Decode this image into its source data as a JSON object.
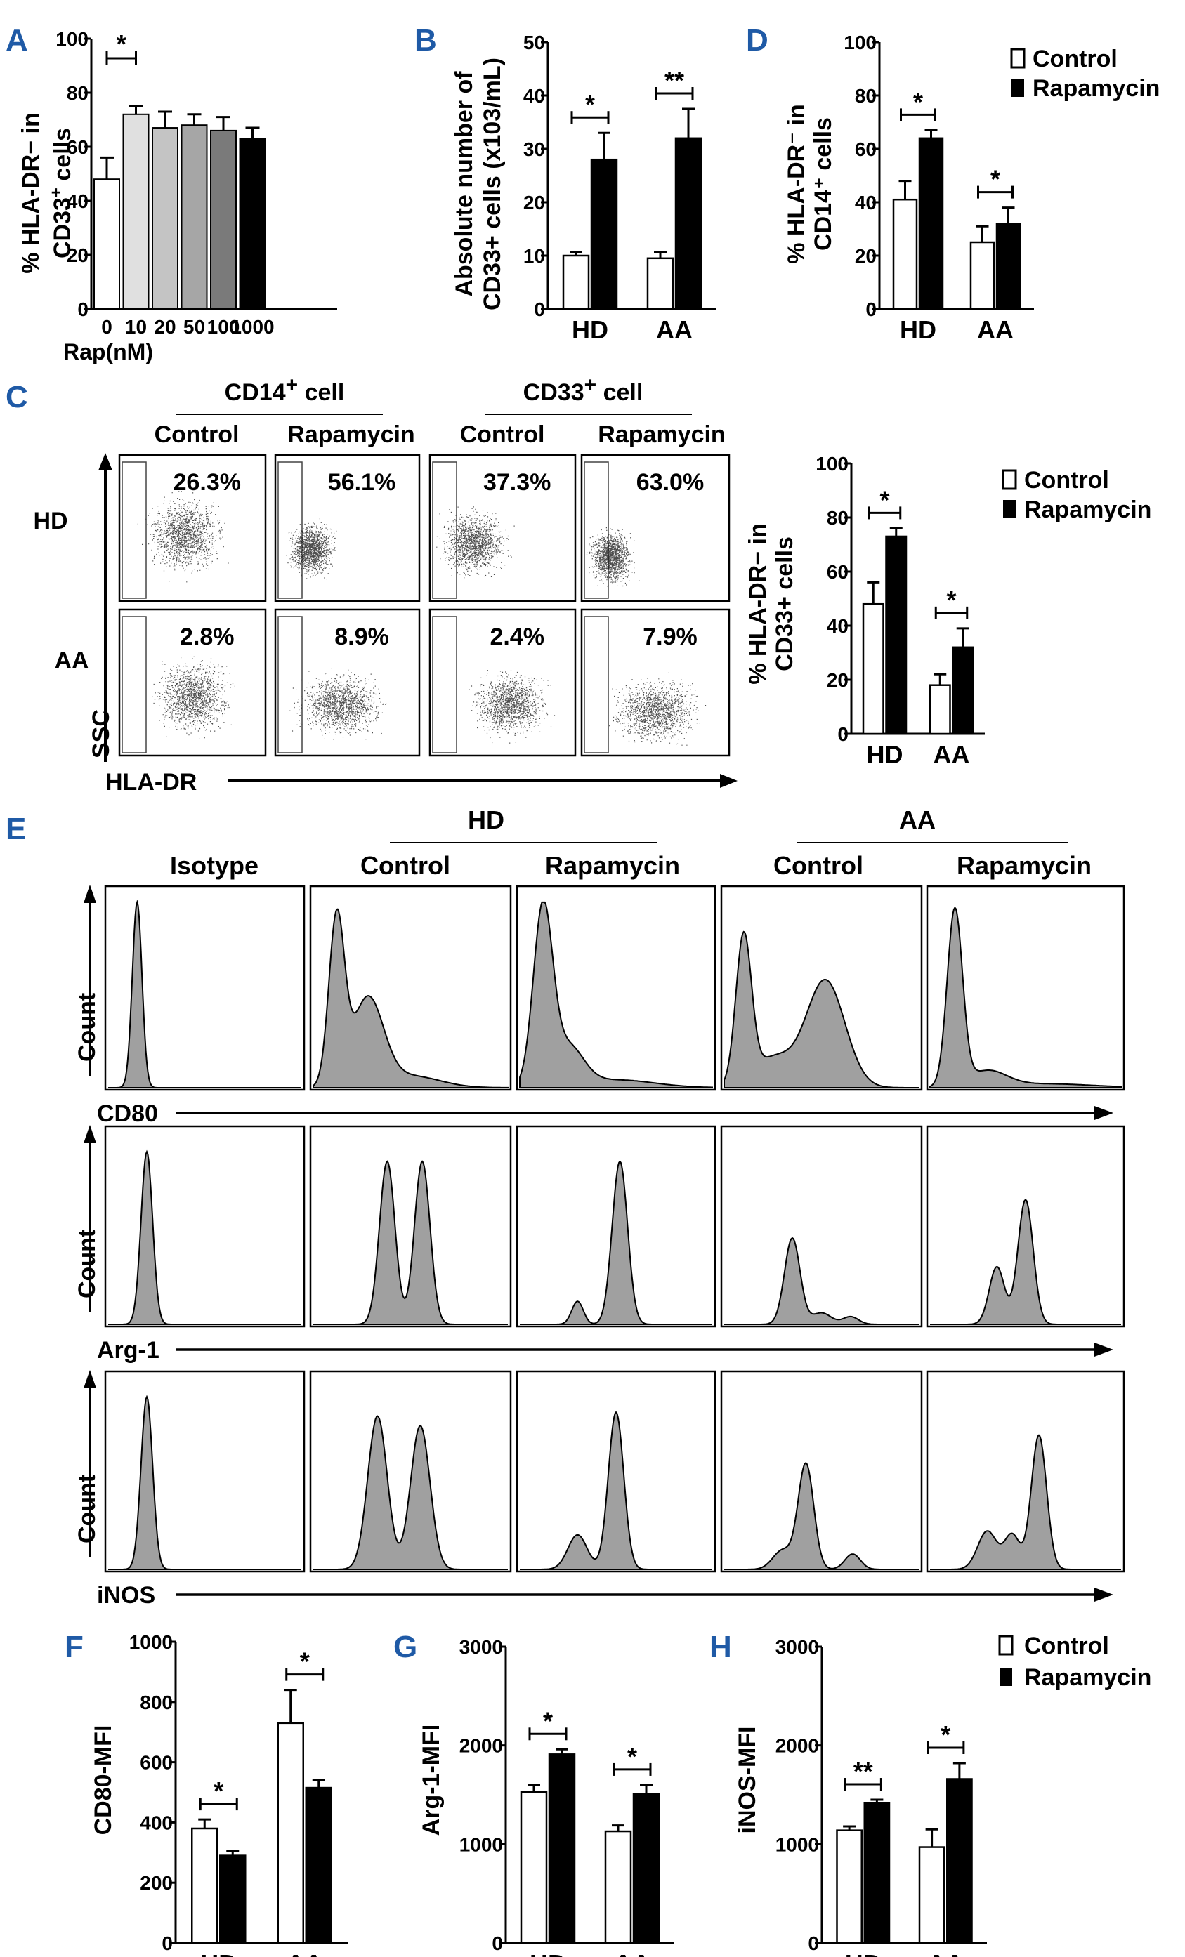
{
  "colors": {
    "panel_letter": "#1f5aa6",
    "bar_control": "#ffffff",
    "bar_rap": "#000000",
    "hist_fill": "#a0a0a0",
    "ink": "#000000"
  },
  "legend": {
    "control": "Control",
    "rapamycin": "Rapamycin"
  },
  "panels": {
    "A": {
      "letter": "A"
    },
    "B": {
      "letter": "B"
    },
    "C": {
      "letter": "C"
    },
    "D": {
      "letter": "D"
    },
    "E": {
      "letter": "E"
    },
    "F": {
      "letter": "F"
    },
    "G": {
      "letter": "G"
    },
    "H": {
      "letter": "H"
    }
  },
  "panelC": {
    "group1": "CD14",
    "group1_sup": "+",
    "group1_suffix": " cell",
    "group2": "CD33",
    "group2_sup": "+",
    "group2_suffix": " cell",
    "col_labels": [
      "Control",
      "Rapamycin",
      "Control",
      "Rapamycin"
    ],
    "row_labels": [
      "HD",
      "AA"
    ],
    "y_axis": "SSC",
    "x_axis": "HLA-DR",
    "percentages": [
      [
        "26.3%",
        "56.1%",
        "37.3%",
        "63.0%"
      ],
      [
        "2.8%",
        "8.9%",
        "2.4%",
        "7.9%"
      ]
    ]
  },
  "panelE": {
    "hd_group": "HD",
    "aa_group": "AA",
    "col_labels": [
      "Isotype",
      "Control",
      "Rapamycin",
      "Control",
      "Rapamycin"
    ],
    "y_axis": "Count",
    "rows": [
      {
        "marker": "CD80"
      },
      {
        "marker": "Arg-1"
      },
      {
        "marker": "iNOS"
      }
    ]
  },
  "chart_data": [
    {
      "id": "A",
      "type": "bar",
      "ylabel_line1": "% HLA-DR− in",
      "ylabel_line2": "CD33",
      "ylabel_sup": "+",
      "ylabel_suffix": " cells",
      "xlabel": "Rap(nM)",
      "categories": [
        "0",
        "10",
        "20",
        "50",
        "100",
        "1000"
      ],
      "values": [
        48,
        72,
        67,
        68,
        66,
        63
      ],
      "errors": [
        8,
        3,
        6,
        4,
        5,
        4
      ],
      "fills": [
        "#ffffff",
        "#e0e0e0",
        "#c4c4c4",
        "#a6a6a6",
        "#7a7a7a",
        "#000000"
      ],
      "ylim": [
        0,
        100
      ],
      "yticks": [
        0,
        20,
        40,
        60,
        80,
        100
      ],
      "significance": [
        {
          "from": 0,
          "to": 1,
          "label": "*"
        }
      ]
    },
    {
      "id": "B",
      "type": "bar",
      "ylabel_line1": "Absolute number of",
      "ylabel_line2": "CD33+ cells (x103/mL)",
      "categories": [
        "HD",
        "AA"
      ],
      "series": [
        {
          "name": "Control",
          "values": [
            10,
            9.5
          ],
          "errors": [
            0.7,
            1.2
          ]
        },
        {
          "name": "Rapamycin",
          "values": [
            28,
            32
          ],
          "errors": [
            5,
            5.5
          ]
        }
      ],
      "ylim": [
        0,
        50
      ],
      "yticks": [
        0,
        10,
        20,
        30,
        40,
        50
      ],
      "significance": [
        {
          "group": 0,
          "label": "*"
        },
        {
          "group": 1,
          "label": "**"
        }
      ]
    },
    {
      "id": "D",
      "type": "bar",
      "ylabel_line1": "% HLA-DR⁻ in",
      "ylabel_line2": "CD14⁺ cells",
      "categories": [
        "HD",
        "AA"
      ],
      "series": [
        {
          "name": "Control",
          "values": [
            41,
            25
          ],
          "errors": [
            7,
            6
          ]
        },
        {
          "name": "Rapamycin",
          "values": [
            64,
            32
          ],
          "errors": [
            3,
            6
          ]
        }
      ],
      "ylim": [
        0,
        100
      ],
      "yticks": [
        0,
        20,
        40,
        60,
        80,
        100
      ],
      "significance": [
        {
          "group": 0,
          "label": "*"
        },
        {
          "group": 1,
          "label": "*"
        }
      ]
    },
    {
      "id": "C2",
      "type": "bar",
      "ylabel_line1": "% HLA-DR− in",
      "ylabel_line2": "CD33+ cells",
      "categories": [
        "HD",
        "AA"
      ],
      "series": [
        {
          "name": "Control",
          "values": [
            48,
            18
          ],
          "errors": [
            8,
            4
          ]
        },
        {
          "name": "Rapamycin",
          "values": [
            73,
            32
          ],
          "errors": [
            3,
            7
          ]
        }
      ],
      "ylim": [
        0,
        100
      ],
      "yticks": [
        0,
        20,
        40,
        60,
        80,
        100
      ],
      "significance": [
        {
          "group": 0,
          "label": "*"
        },
        {
          "group": 1,
          "label": "*"
        }
      ]
    },
    {
      "id": "F",
      "type": "bar",
      "ylabel": "CD80-MFI",
      "categories": [
        "HD",
        "AA"
      ],
      "series": [
        {
          "name": "Control",
          "values": [
            380,
            730
          ],
          "errors": [
            30,
            110
          ]
        },
        {
          "name": "Rapamycin",
          "values": [
            290,
            515
          ],
          "errors": [
            15,
            25
          ]
        }
      ],
      "ylim": [
        0,
        1000
      ],
      "yticks": [
        0,
        200,
        400,
        600,
        800,
        1000
      ],
      "significance": [
        {
          "group": 0,
          "label": "*"
        },
        {
          "group": 1,
          "label": "*"
        }
      ]
    },
    {
      "id": "G",
      "type": "bar",
      "ylabel": "Arg-1-MFI",
      "categories": [
        "HD",
        "AA"
      ],
      "series": [
        {
          "name": "Control",
          "values": [
            1530,
            1130
          ],
          "errors": [
            70,
            60
          ]
        },
        {
          "name": "Rapamycin",
          "values": [
            1910,
            1510
          ],
          "errors": [
            50,
            90
          ]
        }
      ],
      "ylim": [
        0,
        3000
      ],
      "yticks": [
        0,
        1000,
        2000,
        3000
      ],
      "significance": [
        {
          "group": 0,
          "label": "*"
        },
        {
          "group": 1,
          "label": "*"
        }
      ]
    },
    {
      "id": "H",
      "type": "bar",
      "ylabel": "iNOS-MFI",
      "categories": [
        "HD",
        "AA"
      ],
      "series": [
        {
          "name": "Control",
          "values": [
            1140,
            970
          ],
          "errors": [
            40,
            180
          ]
        },
        {
          "name": "Rapamycin",
          "values": [
            1420,
            1660
          ],
          "errors": [
            30,
            160
          ]
        }
      ],
      "ylim": [
        0,
        3000
      ],
      "yticks": [
        0,
        1000,
        2000,
        3000
      ],
      "significance": [
        {
          "group": 0,
          "label": "**"
        },
        {
          "group": 1,
          "label": "*"
        }
      ]
    }
  ]
}
